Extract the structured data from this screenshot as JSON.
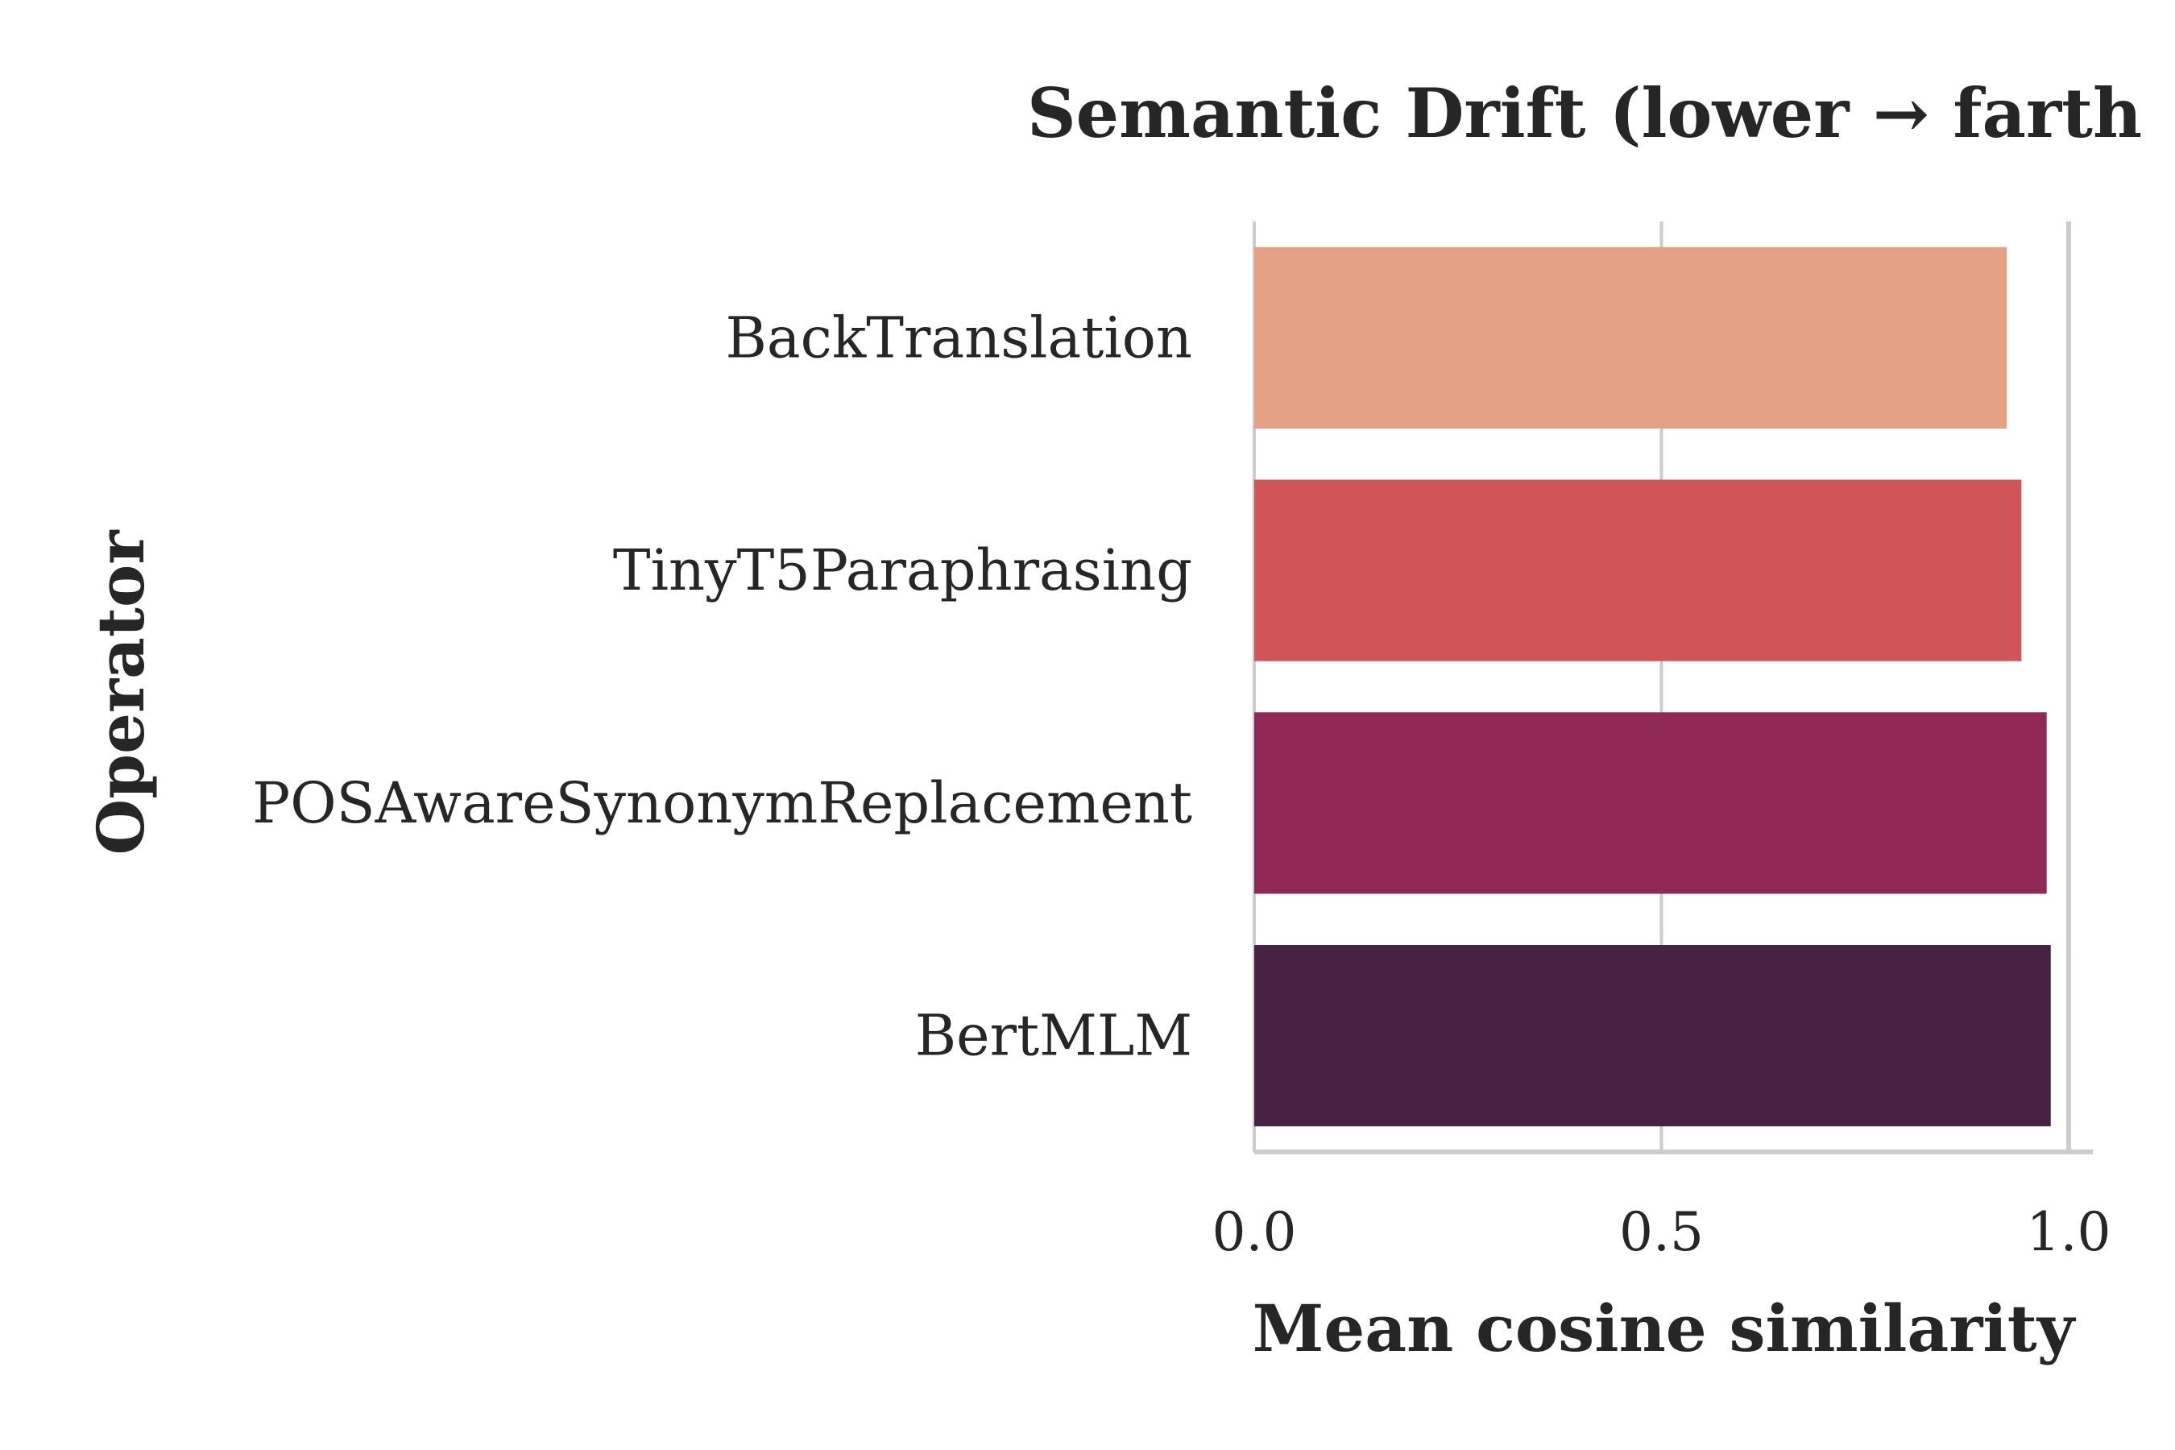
{
  "chart_data": {
    "type": "bar",
    "orientation": "horizontal",
    "title": "Semantic Drift (lower → farth",
    "xlabel": "Mean cosine similarity",
    "ylabel": "Operator",
    "categories": [
      "BackTranslation",
      "TinyT5Paraphrasing",
      "POSAwareSynonymReplacement",
      "BertMLM"
    ],
    "values": [
      0.924,
      0.942,
      0.973,
      0.978
    ],
    "colors": [
      "#e3a083",
      "#d05558",
      "#8f2a57",
      "#472244"
    ],
    "xlim": [
      0.0,
      1.0
    ],
    "xticks": [
      "0.0",
      "0.5",
      "1.0"
    ],
    "grid": true
  }
}
